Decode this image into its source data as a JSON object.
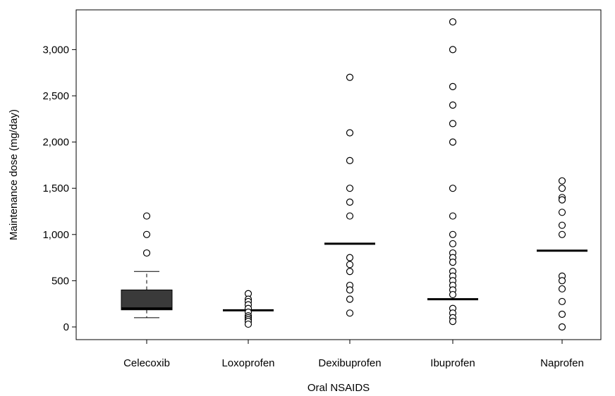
{
  "chart_data": {
    "type": "box",
    "xlabel": "Oral NSAIDS",
    "ylabel": "Maintenance dose (mg/day)",
    "ylim": [
      -130,
      3400
    ],
    "yticks": [
      0,
      500,
      1000,
      1500,
      2000,
      2500,
      3000
    ],
    "ytick_labels": [
      "0",
      "500",
      "1,000",
      "1,500",
      "2,000",
      "2,500",
      "3,000"
    ],
    "categories": [
      "Celecoxib",
      "Loxoprofen",
      "Dexibuprofen",
      "Ibuprofen",
      "Naprofen"
    ],
    "grid": false,
    "box_color": "#3a3a3a",
    "groups": [
      {
        "name": "Celecoxib",
        "q1": 185,
        "median": 200,
        "q3": 400,
        "whisker_low": 100,
        "whisker_high": 600,
        "outliers": [
          800,
          1000,
          1200
        ]
      },
      {
        "name": "Loxoprofen",
        "median": 180,
        "outliers": [
          360,
          300,
          275,
          240,
          200,
          160,
          120,
          100,
          80,
          60,
          30
        ]
      },
      {
        "name": "Dexibuprofen",
        "median": 900,
        "outliers": [
          2700,
          2100,
          1800,
          1500,
          1350,
          1200,
          750,
          675,
          600,
          450,
          400,
          300,
          150
        ]
      },
      {
        "name": "Ibuprofen",
        "median": 300,
        "outliers": [
          3300,
          3000,
          2600,
          2400,
          2200,
          2000,
          1500,
          1200,
          1000,
          900,
          800,
          750,
          700,
          600,
          550,
          500,
          450,
          400,
          350,
          200,
          150,
          100,
          60
        ]
      },
      {
        "name": "Naprofen",
        "median": 825,
        "outliers": [
          1580,
          1500,
          1400,
          1375,
          1240,
          1100,
          1000,
          550,
          500,
          412,
          275,
          137,
          0
        ]
      }
    ]
  }
}
